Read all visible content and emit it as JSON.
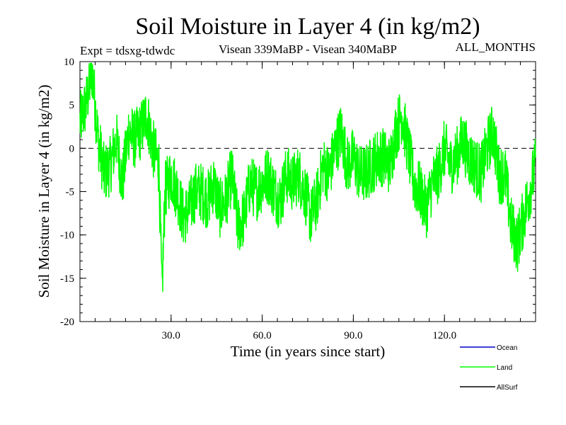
{
  "chart_data": {
    "type": "line",
    "title": "Soil Moisture in Layer 4 (in kg/m2)",
    "subtitle_left": "Expt = tdsxg-tdwdc",
    "subtitle_center": "Visean 339MaBP - Visean   340MaBP",
    "subtitle_right": "ALL_MONTHS",
    "xlabel": "Time (in years since start)",
    "ylabel": "Soil Moisture in Layer 4 (in kg/m2)",
    "xlim": [
      0,
      150
    ],
    "ylim": [
      -20,
      10
    ],
    "x_ticks": [
      30,
      60,
      90,
      120
    ],
    "x_tick_labels": [
      "30.0",
      "60.0",
      "90.0",
      "120.0"
    ],
    "y_ticks": [
      10,
      5,
      0,
      -5,
      -10,
      -15,
      -20
    ],
    "y_tick_labels": [
      "10",
      "5",
      "0",
      "-5",
      "-10",
      "-15",
      "-20"
    ],
    "reference_line": 0,
    "legend": [
      {
        "name": "Ocean",
        "color": "#0000cc"
      },
      {
        "name": "Land",
        "color": "#00ff00"
      },
      {
        "name": "AllSurf",
        "color": "#000000"
      }
    ],
    "series": [
      {
        "name": "Land",
        "color": "#00ff00",
        "x": [
          0,
          2,
          4,
          6,
          8,
          10,
          12,
          14,
          16,
          18,
          20,
          22,
          24,
          26,
          27,
          28,
          30,
          32,
          34,
          36,
          38,
          40,
          42,
          44,
          46,
          48,
          50,
          52,
          54,
          56,
          58,
          60,
          62,
          64,
          66,
          68,
          70,
          72,
          74,
          76,
          78,
          80,
          82,
          84,
          86,
          88,
          90,
          92,
          94,
          96,
          98,
          100,
          102,
          104,
          106,
          108,
          110,
          112,
          114,
          116,
          118,
          120,
          122,
          124,
          126,
          128,
          130,
          132,
          134,
          136,
          138,
          140,
          142,
          144,
          146,
          148,
          150
        ],
        "values": [
          3,
          5,
          9,
          1,
          -3,
          -2,
          1,
          -4,
          2,
          1,
          2,
          4,
          0,
          -2,
          -17,
          -5,
          -3,
          -5,
          -8,
          -7,
          -5,
          -5,
          -6,
          -4,
          -7,
          -6,
          -3,
          -9,
          -8,
          -4,
          -5,
          -4,
          -3,
          -5,
          -6,
          -3,
          -4,
          -3,
          -5,
          -8,
          -6,
          -2,
          -3,
          0,
          2,
          -2,
          -1,
          -3,
          -3,
          -2,
          -1,
          -1,
          -2,
          2,
          4,
          0,
          -4,
          -5,
          -7,
          -4,
          -3,
          0,
          -2,
          -1,
          1,
          -1,
          -2,
          -3,
          0,
          2,
          -3,
          -3,
          -9,
          -11,
          -8,
          -5,
          -2
        ]
      }
    ]
  }
}
